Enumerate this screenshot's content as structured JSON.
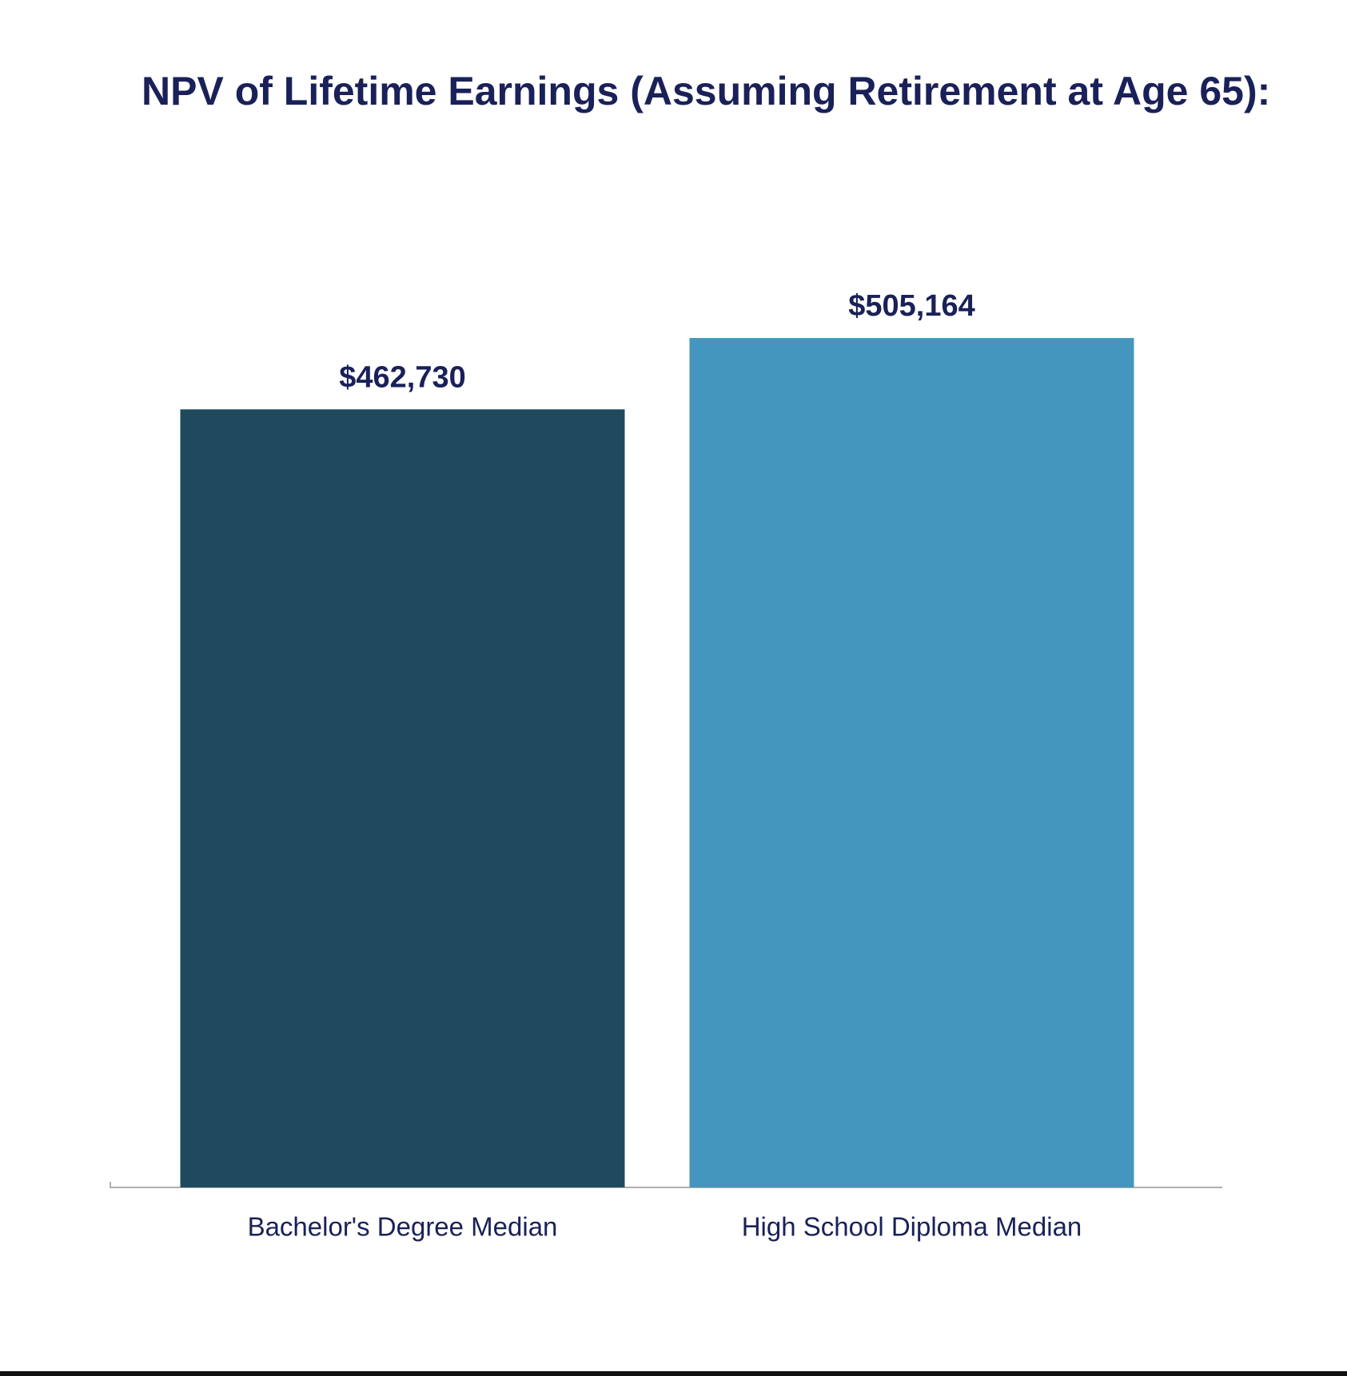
{
  "chart_data": {
    "type": "bar",
    "title": "NPV of Lifetime Earnings (Assuming Retirement at Age 65):",
    "categories": [
      "Bachelor's Degree Median",
      "High School Diploma Median"
    ],
    "values": [
      462730,
      505164
    ],
    "value_labels": [
      "$462,730",
      "$505,164"
    ],
    "colors": [
      "#1f4a5e",
      "#4496be"
    ]
  }
}
